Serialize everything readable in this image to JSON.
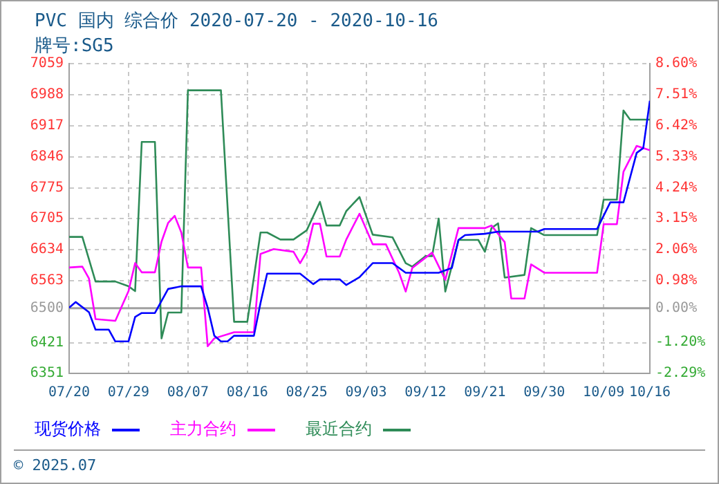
{
  "chart_data": {
    "type": "line",
    "title": "PVC 国内 综合价 2020-07-20 - 2020-10-16",
    "subtitle": "牌号:SG5",
    "xlim": [
      "2020-07-20",
      "2020-10-16"
    ],
    "xticks": [
      {
        "value": "2020-07-20",
        "label": "07/20"
      },
      {
        "value": "2020-07-29",
        "label": "07/29"
      },
      {
        "value": "2020-08-07",
        "label": "08/07"
      },
      {
        "value": "2020-08-16",
        "label": "08/16"
      },
      {
        "value": "2020-08-25",
        "label": "08/25"
      },
      {
        "value": "2020-09-03",
        "label": "09/03"
      },
      {
        "value": "2020-09-12",
        "label": "09/12"
      },
      {
        "value": "2020-09-21",
        "label": "09/21"
      },
      {
        "value": "2020-09-30",
        "label": "09/30"
      },
      {
        "value": "2020-10-09",
        "label": "10/09"
      },
      {
        "value": "2020-10-16",
        "label": "10/16"
      }
    ],
    "ylim": [
      6351,
      7059
    ],
    "yticks": [
      6351,
      6421,
      6500,
      6563,
      6634,
      6705,
      6775,
      6846,
      6917,
      6988,
      7059
    ],
    "y2lim": [
      -2.29,
      8.6
    ],
    "y2ticks": [
      {
        "value": -2.29,
        "label": "-2.29%"
      },
      {
        "value": -1.2,
        "label": "-1.20%"
      },
      {
        "value": 0,
        "label": "0.00%"
      },
      {
        "value": 0.98,
        "label": "0.98%"
      },
      {
        "value": 2.06,
        "label": "2.06%"
      },
      {
        "value": 3.15,
        "label": "3.15%"
      },
      {
        "value": 4.24,
        "label": "4.24%"
      },
      {
        "value": 5.33,
        "label": "5.33%"
      },
      {
        "value": 6.42,
        "label": "6.42%"
      },
      {
        "value": 7.51,
        "label": "7.51%"
      },
      {
        "value": 8.6,
        "label": "8.60%"
      }
    ],
    "grid": true,
    "legend": "bottom",
    "marker": "none",
    "line_style": "solid",
    "ref_lines": [
      {
        "axis": "y",
        "value": 6500,
        "color": "#a0a0a0"
      }
    ],
    "annotations": [
      "© 2025.07"
    ],
    "series": [
      {
        "name": "现货价格",
        "color": "#0000ff",
        "x": [
          "2020-07-20",
          "2020-07-21",
          "2020-07-23",
          "2020-07-24",
          "2020-07-26",
          "2020-07-27",
          "2020-07-29",
          "2020-07-30",
          "2020-07-31",
          "2020-08-02",
          "2020-08-04",
          "2020-08-06",
          "2020-08-09",
          "2020-08-10",
          "2020-08-11",
          "2020-08-12",
          "2020-08-13",
          "2020-08-14",
          "2020-08-17",
          "2020-08-18",
          "2020-08-19",
          "2020-08-24",
          "2020-08-26",
          "2020-08-27",
          "2020-08-30",
          "2020-08-31",
          "2020-09-02",
          "2020-09-04",
          "2020-09-07",
          "2020-09-09",
          "2020-09-14",
          "2020-09-16",
          "2020-09-17",
          "2020-09-18",
          "2020-09-21",
          "2020-09-23",
          "2020-09-29",
          "2020-09-30",
          "2020-10-08",
          "2020-10-10",
          "2020-10-12",
          "2020-10-14",
          "2020-10-15",
          "2020-10-16"
        ],
        "values": [
          6501,
          6514,
          6491,
          6451,
          6451,
          6424,
          6424,
          6480,
          6489,
          6489,
          6544,
          6550,
          6550,
          6501,
          6437,
          6424,
          6424,
          6437,
          6437,
          6512,
          6579,
          6579,
          6555,
          6566,
          6566,
          6553,
          6571,
          6603,
          6603,
          6581,
          6581,
          6592,
          6656,
          6667,
          6670,
          6675,
          6675,
          6681,
          6681,
          6742,
          6742,
          6855,
          6866,
          6974
        ]
      },
      {
        "name": "主力合约",
        "color": "#ff00ff",
        "x": [
          "2020-07-20",
          "2020-07-22",
          "2020-07-23",
          "2020-07-24",
          "2020-07-27",
          "2020-07-29",
          "2020-07-30",
          "2020-07-31",
          "2020-08-02",
          "2020-08-03",
          "2020-08-04",
          "2020-08-05",
          "2020-08-06",
          "2020-08-07",
          "2020-08-09",
          "2020-08-10",
          "2020-08-11",
          "2020-08-14",
          "2020-08-17",
          "2020-08-18",
          "2020-08-20",
          "2020-08-23",
          "2020-08-24",
          "2020-08-25",
          "2020-08-26",
          "2020-08-27",
          "2020-08-28",
          "2020-08-30",
          "2020-08-31",
          "2020-09-02",
          "2020-09-04",
          "2020-09-06",
          "2020-09-08",
          "2020-09-09",
          "2020-09-10",
          "2020-09-13",
          "2020-09-15",
          "2020-09-17",
          "2020-09-21",
          "2020-09-22",
          "2020-09-24",
          "2020-09-25",
          "2020-09-27",
          "2020-09-28",
          "2020-09-30",
          "2020-10-08",
          "2020-10-09",
          "2020-10-11",
          "2020-10-12",
          "2020-10-14",
          "2020-10-16"
        ],
        "values": [
          6593,
          6595,
          6568,
          6475,
          6471,
          6539,
          6603,
          6582,
          6582,
          6652,
          6695,
          6711,
          6673,
          6593,
          6593,
          6413,
          6431,
          6445,
          6445,
          6624,
          6635,
          6629,
          6603,
          6629,
          6693,
          6693,
          6618,
          6618,
          6657,
          6716,
          6646,
          6646,
          6581,
          6538,
          6592,
          6627,
          6565,
          6683,
          6683,
          6689,
          6651,
          6522,
          6522,
          6600,
          6581,
          6581,
          6692,
          6692,
          6812,
          6871,
          6861
        ]
      },
      {
        "name": "最近合约",
        "color": "#2e8b57",
        "x": [
          "2020-07-20",
          "2020-07-22",
          "2020-07-24",
          "2020-07-27",
          "2020-07-29",
          "2020-07-30",
          "2020-07-31",
          "2020-08-02",
          "2020-08-03",
          "2020-08-04",
          "2020-08-06",
          "2020-08-07",
          "2020-08-12",
          "2020-08-14",
          "2020-08-16",
          "2020-08-18",
          "2020-08-19",
          "2020-08-21",
          "2020-08-23",
          "2020-08-25",
          "2020-08-27",
          "2020-08-28",
          "2020-08-30",
          "2020-08-31",
          "2020-09-02",
          "2020-09-04",
          "2020-09-07",
          "2020-09-09",
          "2020-09-10",
          "2020-09-12",
          "2020-09-13",
          "2020-09-14",
          "2020-09-15",
          "2020-09-17",
          "2020-09-20",
          "2020-09-21",
          "2020-09-22",
          "2020-09-23",
          "2020-09-24",
          "2020-09-27",
          "2020-09-28",
          "2020-09-30",
          "2020-10-08",
          "2020-10-09",
          "2020-10-11",
          "2020-10-12",
          "2020-10-13",
          "2020-10-16"
        ],
        "values": [
          6663,
          6663,
          6561,
          6561,
          6550,
          6539,
          6880,
          6880,
          6431,
          6490,
          6490,
          6998,
          6998,
          6469,
          6469,
          6673,
          6673,
          6657,
          6657,
          6678,
          6743,
          6689,
          6689,
          6722,
          6754,
          6668,
          6662,
          6603,
          6595,
          6619,
          6619,
          6705,
          6538,
          6656,
          6656,
          6629,
          6683,
          6694,
          6570,
          6576,
          6683,
          6667,
          6667,
          6748,
          6748,
          6952,
          6931,
          6931
        ]
      }
    ]
  }
}
